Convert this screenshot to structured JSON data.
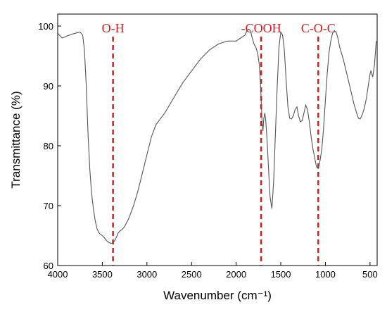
{
  "chart_data": {
    "type": "line",
    "title": "",
    "xlabel": "Wavenumber (cm⁻¹)",
    "ylabel": "Transmittance (%)",
    "xlim": [
      4000,
      420
    ],
    "ylim": [
      60,
      102
    ],
    "x_reversed": true,
    "grid": false,
    "legend": "none",
    "xticks": [
      4000,
      3500,
      3000,
      2500,
      2000,
      1500,
      1000,
      500
    ],
    "yticks": [
      60,
      70,
      80,
      90,
      100
    ],
    "xtick_labels": [
      "4000",
      "3500",
      "3000",
      "2500",
      "2000",
      "1500",
      "1000",
      "500"
    ],
    "ytick_labels": [
      "60",
      "70",
      "80",
      "90",
      "100"
    ],
    "line_color": "#555555",
    "annotation_color": "#cc1f1f",
    "series": [
      {
        "x": [
          4000,
          3950,
          3900,
          3850,
          3800,
          3750,
          3720,
          3700,
          3680,
          3660,
          3640,
          3620,
          3600,
          3580,
          3560,
          3540,
          3520,
          3500,
          3480,
          3460,
          3440,
          3420,
          3400,
          3380,
          3360,
          3340,
          3320,
          3300,
          3280,
          3250,
          3200,
          3150,
          3100,
          3050,
          3000,
          2950,
          2900,
          2850,
          2800,
          2700,
          2600,
          2500,
          2400,
          2300,
          2200,
          2100,
          2000,
          1950,
          1900,
          1880,
          1860,
          1840,
          1820,
          1800,
          1780,
          1760,
          1740,
          1730,
          1720,
          1710,
          1700,
          1690,
          1680,
          1670,
          1660,
          1650,
          1640,
          1630,
          1620,
          1600,
          1580,
          1560,
          1540,
          1520,
          1500,
          1480,
          1460,
          1440,
          1420,
          1400,
          1380,
          1360,
          1340,
          1320,
          1300,
          1280,
          1260,
          1240,
          1220,
          1200,
          1180,
          1160,
          1140,
          1120,
          1100,
          1080,
          1070,
          1060,
          1040,
          1020,
          1000,
          980,
          960,
          940,
          920,
          900,
          880,
          860,
          840,
          800,
          760,
          720,
          680,
          650,
          630,
          610,
          600,
          580,
          560,
          540,
          520,
          500,
          490,
          470,
          450,
          430
        ],
        "y": [
          98.8,
          98.0,
          98.3,
          98.6,
          98.8,
          99.0,
          98.5,
          96.0,
          90.0,
          82.0,
          76.0,
          72.0,
          69.5,
          67.5,
          66.2,
          65.5,
          65.2,
          65.0,
          64.7,
          64.3,
          64.0,
          63.8,
          63.7,
          63.8,
          64.2,
          64.8,
          65.5,
          65.8,
          66.0,
          66.5,
          68.0,
          70.0,
          72.5,
          75.5,
          78.5,
          81.5,
          83.5,
          84.5,
          85.5,
          88.0,
          90.5,
          92.5,
          94.5,
          96.0,
          97.0,
          97.5,
          97.5,
          98.0,
          98.5,
          99.2,
          99.5,
          99.2,
          98.0,
          97.0,
          96.5,
          95.5,
          93.5,
          91.0,
          88.0,
          84.0,
          82.5,
          84.5,
          85.5,
          84.5,
          82.5,
          80.0,
          77.0,
          74.0,
          71.5,
          69.5,
          74.0,
          82.0,
          90.0,
          96.5,
          99.0,
          98.5,
          96.0,
          91.0,
          86.5,
          84.6,
          84.5,
          85.0,
          86.0,
          86.5,
          85.0,
          84.0,
          84.2,
          85.5,
          86.8,
          86.0,
          84.0,
          81.5,
          79.5,
          78.0,
          76.5,
          76.2,
          76.8,
          77.5,
          79.5,
          83.0,
          87.5,
          92.0,
          95.5,
          97.5,
          98.8,
          99.2,
          99.0,
          98.0,
          96.5,
          94.5,
          92.0,
          89.5,
          87.0,
          85.5,
          84.6,
          84.5,
          84.8,
          85.5,
          86.5,
          88.0,
          90.0,
          92.0,
          92.5,
          91.5,
          93.5,
          97.5
        ]
      }
    ],
    "annotations": [
      {
        "label": "O-H",
        "x": 3380
      },
      {
        "label": "-COOH",
        "x": 1720
      },
      {
        "label": "C-O-C",
        "x": 1080
      }
    ]
  }
}
